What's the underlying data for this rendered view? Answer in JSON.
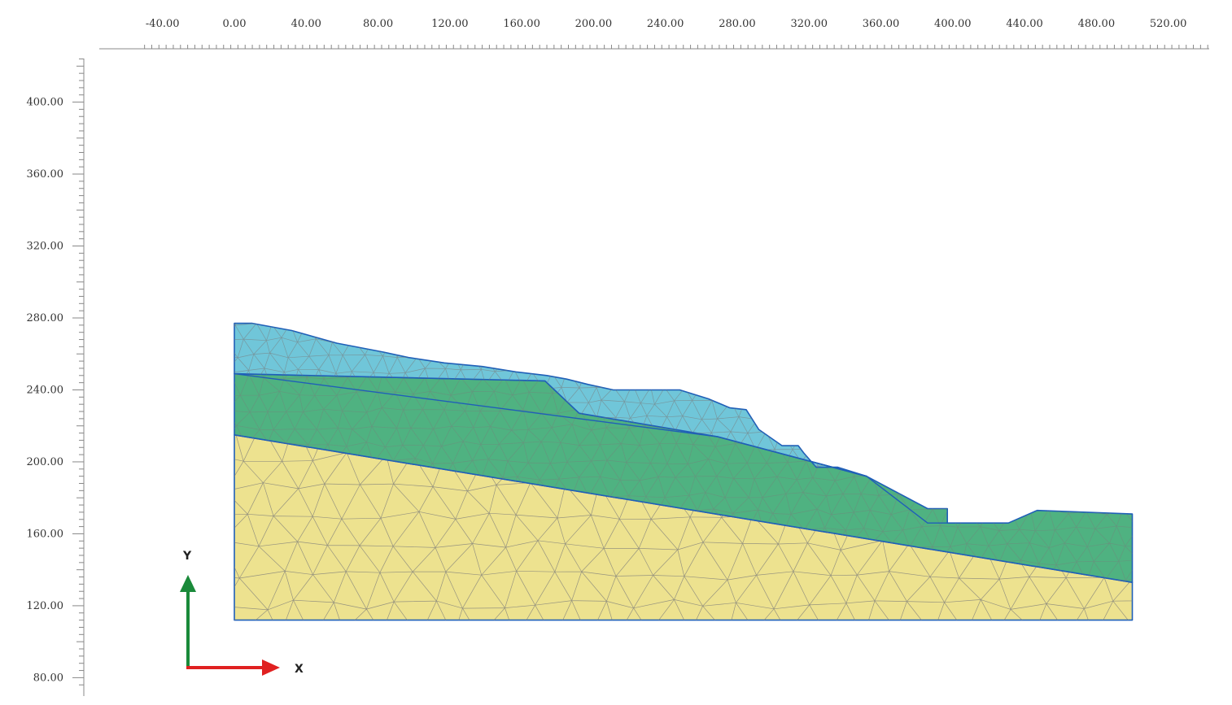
{
  "ruler_x": {
    "labels": [
      "-40.00",
      "0.00",
      "40.00",
      "80.00",
      "120.00",
      "160.00",
      "200.00",
      "240.00",
      "280.00",
      "320.00",
      "360.00",
      "400.00",
      "440.00",
      "480.00",
      "520.00"
    ],
    "range": [
      -50,
      546
    ],
    "major_step": 40,
    "minor_step": 4
  },
  "ruler_y": {
    "labels": [
      "400.00",
      "360.00",
      "320.00",
      "280.00",
      "240.00",
      "200.00",
      "160.00",
      "120.00",
      "80.00"
    ],
    "range": [
      76,
      424
    ],
    "major_step": 40,
    "minor_step": 4
  },
  "axes_indicator": {
    "x_label": "X",
    "y_label": "Y",
    "x_color": "#e02020",
    "y_color": "#1a8a3a"
  },
  "colors": {
    "top_layer": "#70c6d9",
    "middle_layer": "#4fb281",
    "bottom_layer": "#ede28f",
    "outline": "#1f5fb8",
    "mesh": "#7a7a7a"
  },
  "geometry": {
    "top_layer": [
      [
        0,
        277
      ],
      [
        10,
        277
      ],
      [
        32,
        273
      ],
      [
        57,
        266
      ],
      [
        83,
        261
      ],
      [
        97,
        258
      ],
      [
        117,
        255
      ],
      [
        138,
        253
      ],
      [
        157,
        250
      ],
      [
        174,
        248
      ],
      [
        185,
        246
      ],
      [
        197,
        243
      ],
      [
        211,
        240
      ],
      [
        248,
        240
      ],
      [
        264,
        235
      ],
      [
        276,
        230
      ],
      [
        285,
        229
      ],
      [
        292,
        218
      ],
      [
        305,
        209
      ],
      [
        314,
        209
      ],
      [
        317,
        205
      ],
      [
        324,
        197
      ],
      [
        336,
        197
      ],
      [
        352,
        192
      ],
      [
        269,
        214
      ],
      [
        192,
        227
      ],
      [
        173,
        245
      ],
      [
        0,
        249
      ]
    ],
    "middle_layer": [
      [
        0,
        249
      ],
      [
        173,
        245
      ],
      [
        192,
        227
      ],
      [
        269,
        214
      ],
      [
        352,
        192
      ],
      [
        386,
        174
      ],
      [
        397,
        174
      ],
      [
        397,
        166
      ],
      [
        417,
        166
      ],
      [
        431,
        166
      ],
      [
        447,
        173
      ],
      [
        500,
        171
      ],
      [
        500,
        133
      ],
      [
        0,
        215
      ]
    ],
    "bottom_layer": [
      [
        0,
        215
      ],
      [
        500,
        133
      ],
      [
        500,
        112
      ],
      [
        0,
        112
      ]
    ],
    "inner_line": [
      [
        0,
        249
      ],
      [
        269,
        214
      ],
      [
        352,
        192
      ],
      [
        386,
        166
      ],
      [
        397,
        166
      ]
    ]
  }
}
